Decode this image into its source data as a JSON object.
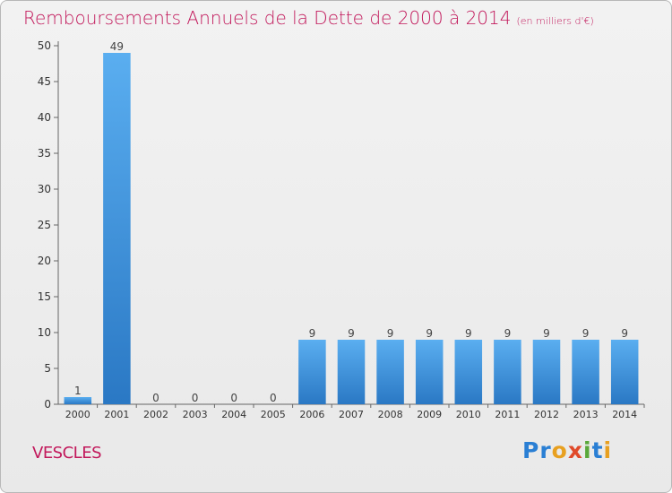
{
  "chart_data": {
    "type": "bar",
    "title": "Remboursements Annuels de la Dette de 2000 à 2014",
    "unit_label": "(en milliers d'€)",
    "categories": [
      "2000",
      "2001",
      "2002",
      "2003",
      "2004",
      "2005",
      "2006",
      "2007",
      "2008",
      "2009",
      "2010",
      "2011",
      "2012",
      "2013",
      "2014"
    ],
    "values": [
      1,
      49,
      0,
      0,
      0,
      0,
      9,
      9,
      9,
      9,
      9,
      9,
      9,
      9,
      9
    ],
    "ylim": [
      0,
      50
    ],
    "yticks": [
      0,
      5,
      10,
      15,
      20,
      25,
      30,
      35,
      40,
      45,
      50
    ],
    "xlabel": "",
    "ylabel": "",
    "grid": false,
    "bar_color": "#3a93dd",
    "title_color": "#c2185b"
  },
  "location": "VESCLES",
  "brand": {
    "parts": [
      "Pr",
      "o",
      "x",
      "i",
      "t",
      "i"
    ]
  }
}
